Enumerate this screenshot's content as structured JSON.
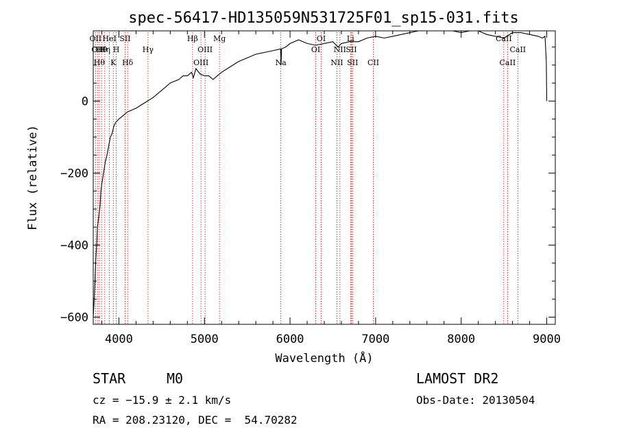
{
  "chart_data": {
    "type": "line",
    "title": "spec-56417-HD135059N531725F01_sp15-031.fits",
    "xlabel": "Wavelength (Å)",
    "ylabel": "Flux (relative)",
    "xlim": [
      3700,
      9100
    ],
    "ylim": [
      -620,
      195
    ],
    "xticks": [
      4000,
      5000,
      6000,
      7000,
      8000,
      9000
    ],
    "yticks": [
      -600,
      -400,
      -200,
      0
    ],
    "xtick_labels": [
      "4000",
      "5000",
      "6000",
      "7000",
      "8000",
      "9000"
    ],
    "ytick_labels": [
      "−600",
      "−400",
      "−200",
      "0"
    ],
    "grid": false,
    "line_color": "#000000",
    "marker_color": "#cc0000",
    "series": [
      {
        "x": [
          3700,
          3710,
          3720,
          3730,
          3740,
          3750,
          3760,
          3770,
          3780,
          3790,
          3800,
          3820,
          3840,
          3860,
          3880,
          3900,
          3920,
          3940,
          3960,
          3980,
          4000,
          4050,
          4100,
          4150,
          4200,
          4300,
          4400,
          4500,
          4600,
          4700,
          4750,
          4800,
          4850,
          4870,
          4900,
          4950,
          5000,
          5050,
          5100,
          5150,
          5200,
          5300,
          5400,
          5500,
          5600,
          5700,
          5800,
          5890,
          5895,
          5900,
          5950,
          6000,
          6100,
          6200,
          6300,
          6400,
          6500,
          6560,
          6600,
          6700,
          6800,
          6900,
          7000,
          7100,
          7200,
          7300,
          7400,
          7500,
          7600,
          7700,
          7800,
          7900,
          8000,
          8100,
          8200,
          8300,
          8400,
          8500,
          8600,
          8700,
          8800,
          8900,
          8950,
          8980,
          8995,
          9000
        ],
        "y": [
          -600,
          -560,
          -500,
          -440,
          -400,
          -350,
          -330,
          -310,
          -290,
          -250,
          -230,
          -200,
          -170,
          -150,
          -125,
          -100,
          -90,
          -70,
          -60,
          -55,
          -50,
          -40,
          -30,
          -25,
          -20,
          -5,
          10,
          30,
          50,
          60,
          70,
          70,
          80,
          65,
          90,
          75,
          70,
          70,
          60,
          70,
          80,
          95,
          110,
          120,
          130,
          135,
          140,
          145,
          100,
          145,
          150,
          160,
          170,
          160,
          155,
          160,
          165,
          150,
          160,
          165,
          165,
          175,
          180,
          175,
          180,
          185,
          190,
          195,
          195,
          195,
          195,
          195,
          190,
          195,
          195,
          185,
          180,
          175,
          190,
          190,
          185,
          180,
          175,
          180,
          110,
          0
        ]
      }
    ],
    "line_markers": [
      {
        "wl": 3727,
        "label": "OII",
        "row": 0
      },
      {
        "wl": 3750,
        "label": "OII",
        "row": 1
      },
      {
        "wl": 3771,
        "label": "Hθ",
        "row": 2
      },
      {
        "wl": 3797,
        "label": "Hθ",
        "row": 1
      },
      {
        "wl": 3835,
        "label": "Hη",
        "row": 1
      },
      {
        "wl": 3889,
        "label": "HeI",
        "row": 0
      },
      {
        "wl": 3934,
        "label": "K",
        "row": 2
      },
      {
        "wl": 3969,
        "label": "H",
        "row": 1
      },
      {
        "wl": 4072,
        "label": "SII",
        "row": 0
      },
      {
        "wl": 4102,
        "label": "Hδ",
        "row": 2
      },
      {
        "wl": 4340,
        "label": "Hγ",
        "row": 1
      },
      {
        "wl": 4861,
        "label": "Hβ",
        "row": 0
      },
      {
        "wl": 4959,
        "label": "OIII",
        "row": 2
      },
      {
        "wl": 5007,
        "label": "OIII",
        "row": 1
      },
      {
        "wl": 5175,
        "label": "Mg",
        "row": 0
      },
      {
        "wl": 5893,
        "label": "Na",
        "row": 2
      },
      {
        "wl": 6300,
        "label": "OI",
        "row": 1
      },
      {
        "wl": 6364,
        "label": "OI",
        "row": 0
      },
      {
        "wl": 6548,
        "label": "NII",
        "row": 2
      },
      {
        "wl": 6583,
        "label": "NII",
        "row": 1
      },
      {
        "wl": 6707,
        "label": "Li",
        "row": 0
      },
      {
        "wl": 6716,
        "label": "SII",
        "row": 1
      },
      {
        "wl": 6731,
        "label": "SII",
        "row": 2
      },
      {
        "wl": 6973,
        "label": "CII",
        "row": 2
      },
      {
        "wl": 8498,
        "label": "CaII",
        "row": 0
      },
      {
        "wl": 8542,
        "label": "CaII",
        "row": 2
      },
      {
        "wl": 8662,
        "label": "CaII",
        "row": 1
      }
    ]
  },
  "info": {
    "object_class": "STAR",
    "subclass": "M0",
    "survey": "LAMOST DR2",
    "cz": "cz = −15.9 ± 2.1 km/s",
    "obs_date": "Obs-Date: 20130504",
    "coords": "RA = 208.23120, DEC =  54.70282"
  }
}
